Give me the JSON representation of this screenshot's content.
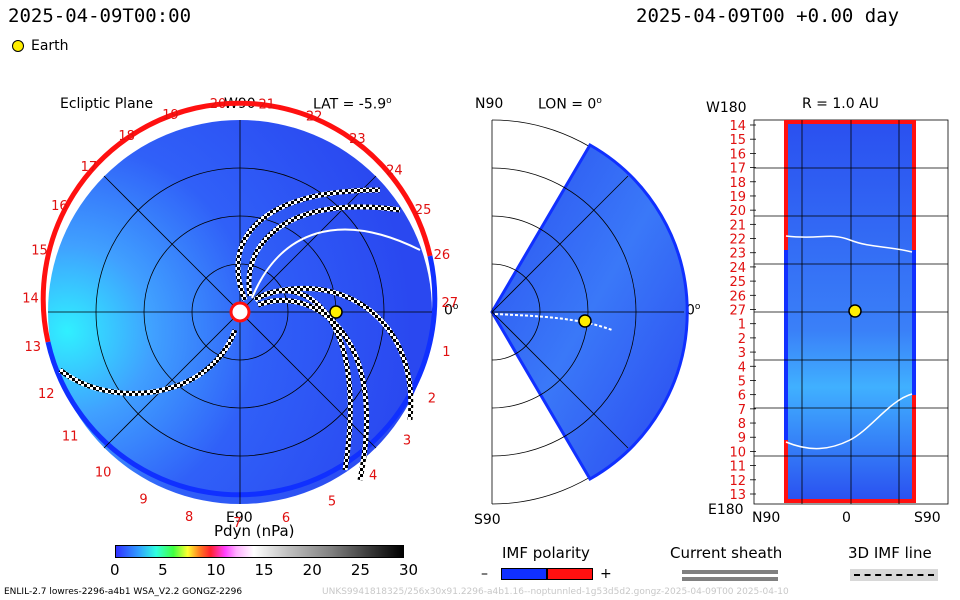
{
  "header": {
    "left_time": "2025-04-09T00:00",
    "right_time": "2025-04-09T00 +0.00 day"
  },
  "legend": {
    "earth_label": "Earth"
  },
  "ecliptic": {
    "title": "Ecliptic Plane",
    "top_label": "W90",
    "bottom_label": "E90",
    "right_label": "0",
    "lat_label": "LAT = -5.9",
    "degree_mark": "o",
    "rim_numbers": [
      "20",
      "21",
      "22",
      "23",
      "24",
      "25",
      "26",
      "27",
      "1",
      "2",
      "3",
      "4",
      "5",
      "6",
      "7",
      "8",
      "9",
      "10",
      "11",
      "12",
      "13",
      "14",
      "15",
      "16",
      "17",
      "18",
      "19"
    ]
  },
  "meridional": {
    "top_label": "N90",
    "bottom_label": "S90",
    "lon_label": "LON = 0",
    "right_label": "0"
  },
  "radial": {
    "top_left_label": "W180",
    "title": "R = 1.0 AU",
    "bottom_left_label": "E180",
    "x_labels": [
      "N90",
      "0",
      "S90"
    ],
    "rotation_labels": [
      "14",
      "15",
      "16",
      "17",
      "18",
      "19",
      "20",
      "21",
      "22",
      "23",
      "24",
      "25",
      "26",
      "27",
      "1",
      "2",
      "3",
      "4",
      "5",
      "6",
      "7",
      "8",
      "9",
      "10",
      "11",
      "12",
      "13"
    ]
  },
  "colorbar": {
    "title": "Pdyn (nPa)",
    "ticks": [
      "0",
      "5",
      "10",
      "15",
      "20",
      "25",
      "30"
    ]
  },
  "imf_polarity": {
    "title": "IMF polarity",
    "minus": "–",
    "plus": "+"
  },
  "current_sheath": {
    "title": "Current sheath"
  },
  "imf_line": {
    "title": "3D IMF line"
  },
  "footer": {
    "left": "ENLIL-2.7 lowres-2296-a4b1 WSA_V2.2 GONGZ-2296",
    "right": "UNKS9941818325/256x30x91.2296-a4b1.16--noptunnled-1g53d5d2.gongz-2025-04-09T00    2025-04-10"
  },
  "colors": {
    "background_blue": "#3050f0",
    "rim_red": "#ff1010",
    "rim_blue": "#1030ff",
    "earth": "#ffee00"
  }
}
